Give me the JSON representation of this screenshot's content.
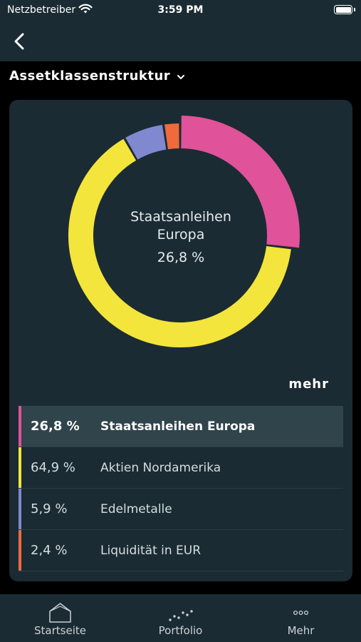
{
  "status_bar": {
    "carrier": "Netzbetreiber",
    "time": "3:59 PM"
  },
  "header": {
    "title": "Assetklassenstruktur"
  },
  "chart_data": {
    "type": "pie",
    "variant": "donut",
    "center_label": "Staatsanleihen Europa",
    "center_value": "26,8 %",
    "categories": [
      "Staatsanleihen Europa",
      "Aktien Nordamerika",
      "Edelmetalle",
      "Liquidität in EUR"
    ],
    "values": [
      26.8,
      64.9,
      5.9,
      2.4
    ],
    "colors": [
      "#e0529a",
      "#f3e53b",
      "#8088cf",
      "#f06a3c"
    ],
    "highlighted": "Staatsanleihen Europa"
  },
  "more_label": "mehr",
  "legend": [
    {
      "pct": "26,8 %",
      "name": "Staatsanleihen Europa",
      "color": "#e0529a"
    },
    {
      "pct": "64,9 %",
      "name": "Aktien Nordamerika",
      "color": "#f3e53b"
    },
    {
      "pct": "5,9 %",
      "name": "Edelmetalle",
      "color": "#8088cf"
    },
    {
      "pct": "2,4 %",
      "name": "Liquidität in EUR",
      "color": "#f06a3c"
    }
  ],
  "tabs": [
    {
      "label": "Startseite",
      "icon": "home-icon"
    },
    {
      "label": "Portfolio",
      "icon": "portfolio-chart-icon"
    },
    {
      "label": "Mehr",
      "icon": "more-dots-icon"
    }
  ]
}
